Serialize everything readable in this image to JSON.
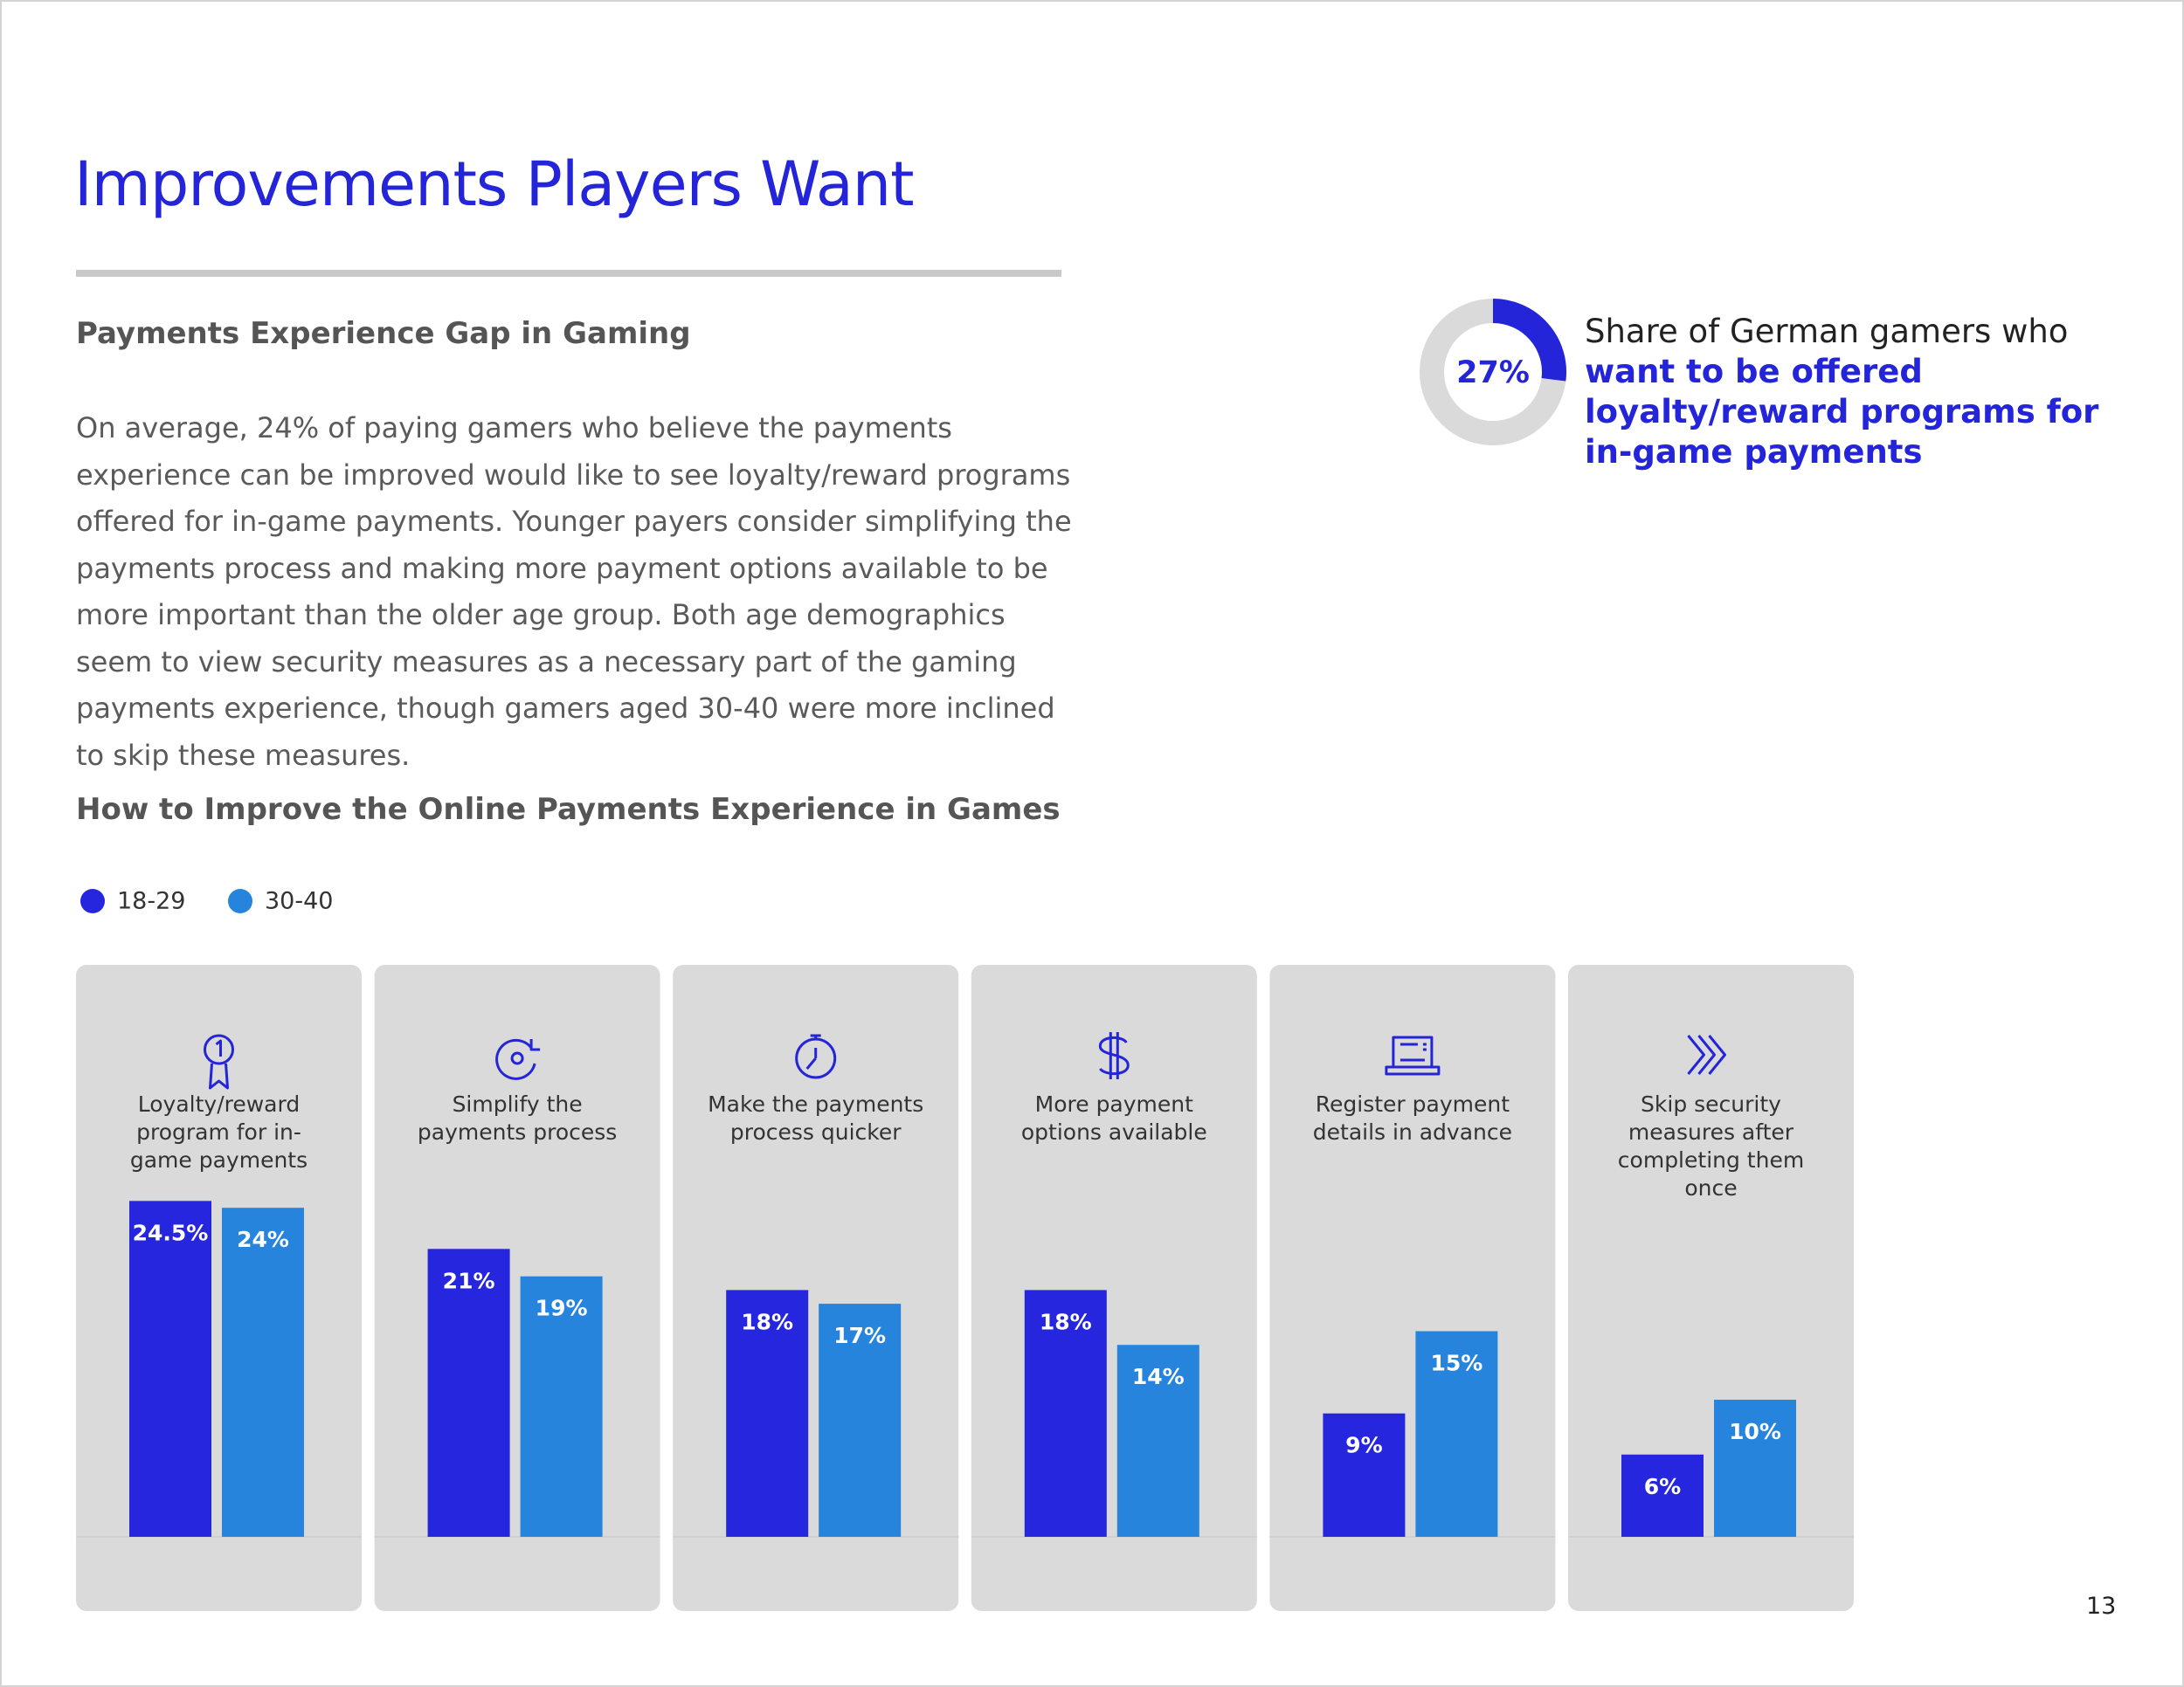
{
  "header": {
    "title": "Improvements Players Want"
  },
  "section": {
    "heading": "Payments Experience Gap in Gaming",
    "body": "On average, 24% of paying gamers who believe the payments experience can be improved would like to see loyalty/reward programs offered for in-game payments. Younger payers consider simplifying the payments process and making more payment options available to be more important than the older age group. Both age demographics seem to view security measures as a necessary part of the gaming payments experience, though gamers aged 30-40 were more inclined to skip these measures."
  },
  "stat": {
    "value": 27,
    "value_label": "27%",
    "lead": "Share of German gamers who",
    "highlight": "want to be offered loyalty/reward programs for in-game payments"
  },
  "chart_data": {
    "type": "bar",
    "title": "How to Improve the Online Payments Experience in Games",
    "categories": [
      "Loyalty/reward program for in-game payments",
      "Simplify the payments process",
      "Make the payments process quicker",
      "More payment options available",
      "Register payment details in advance",
      "Skip security measures after completing them once"
    ],
    "series": [
      {
        "name": "18-29",
        "color": "#2626de",
        "values": [
          24.5,
          21,
          18,
          18,
          9,
          6
        ],
        "value_labels": [
          "24.5%",
          "21%",
          "18%",
          "18%",
          "9%",
          "6%"
        ]
      },
      {
        "name": "30-40",
        "color": "#2784dc",
        "values": [
          24,
          19,
          17,
          14,
          15,
          10
        ],
        "value_labels": [
          "24%",
          "19%",
          "17%",
          "14%",
          "15%",
          "10%"
        ]
      }
    ]
  },
  "page_number": "13"
}
